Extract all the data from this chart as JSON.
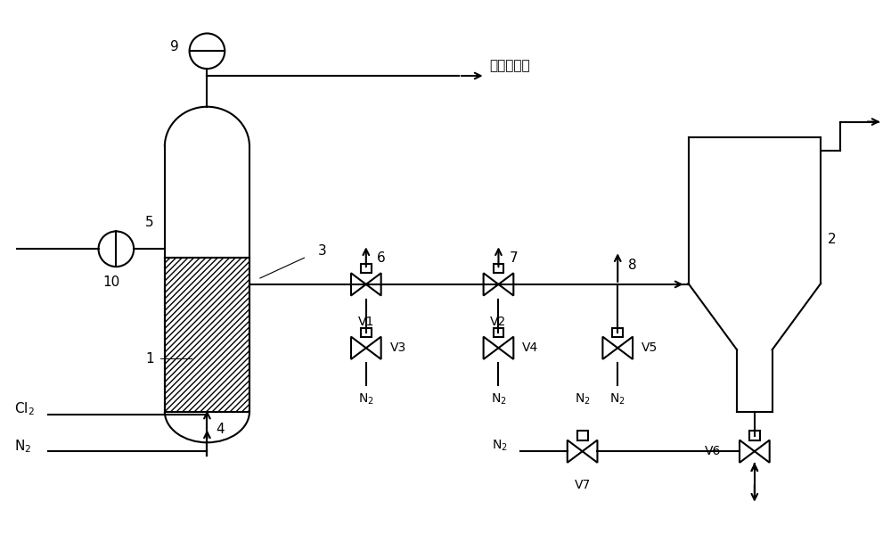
{
  "bg_color": "#ffffff",
  "line_color": "#000000",
  "crude_product": "粗四氯化钖",
  "Cl2_label": "Cl₂",
  "N2_label": "N₂",
  "labels": [
    "1",
    "2",
    "3",
    "4",
    "5",
    "6",
    "7",
    "8",
    "9",
    "10",
    "V1",
    "V2",
    "V3",
    "V4",
    "V5",
    "V6",
    "V7"
  ]
}
